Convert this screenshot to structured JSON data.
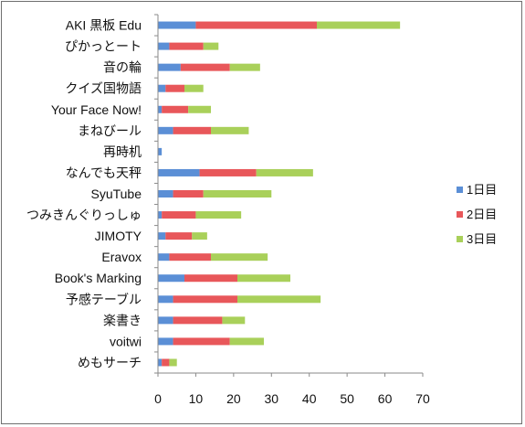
{
  "chart_data": {
    "type": "bar",
    "orientation": "horizontal",
    "stacked": true,
    "categories": [
      "AKI 黒板 Edu",
      "ぴかっとート",
      "音の輪",
      "クイズ国物語",
      "Your Face Now!",
      "まねびール",
      "再時机",
      "なんでも天秤",
      "SyuTube",
      "つみきんぐりっしゅ",
      "JIMOTY",
      "Eravox",
      "Book's Marking",
      "予感テーブル",
      "楽書き",
      "voitwi",
      "めもサーチ"
    ],
    "series": [
      {
        "name": "1日目",
        "color": "#5b8fd6",
        "values": [
          10,
          3,
          6,
          2,
          1,
          4,
          1,
          11,
          4,
          1,
          2,
          3,
          7,
          4,
          4,
          4,
          1
        ]
      },
      {
        "name": "2日目",
        "color": "#e8575a",
        "values": [
          32,
          9,
          13,
          5,
          7,
          10,
          0,
          15,
          8,
          9,
          7,
          11,
          14,
          17,
          13,
          15,
          2
        ]
      },
      {
        "name": "3日目",
        "color": "#a9d05a",
        "values": [
          22,
          4,
          8,
          5,
          6,
          10,
          0,
          15,
          18,
          12,
          4,
          15,
          14,
          22,
          6,
          9,
          2
        ]
      }
    ],
    "xlim": [
      0,
      70
    ],
    "xticks": [
      "0",
      "10",
      "20",
      "30",
      "40",
      "50",
      "60",
      "70"
    ],
    "grid": false,
    "legend_position": "right"
  }
}
